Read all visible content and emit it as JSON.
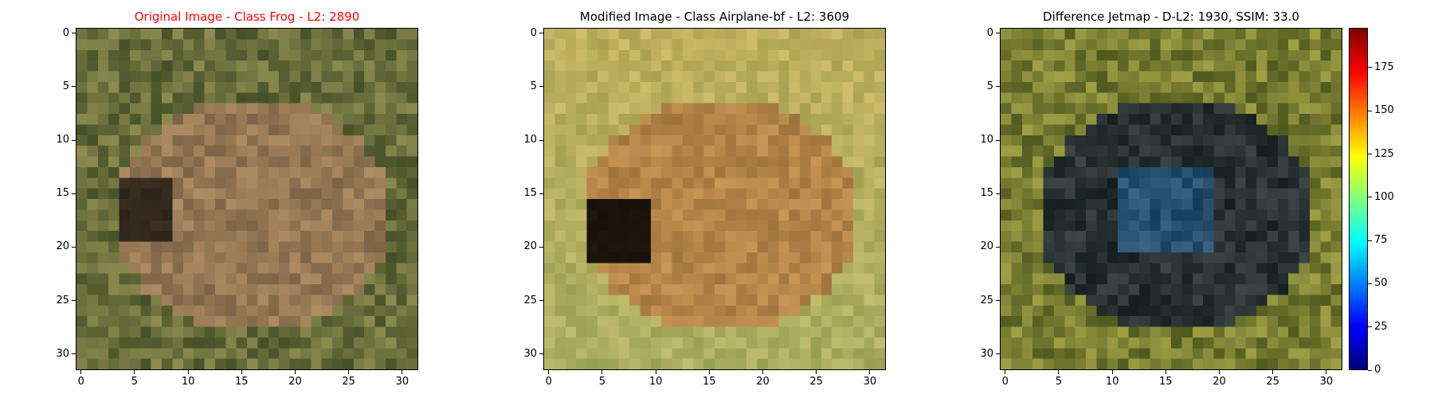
{
  "panels": [
    {
      "title": "Original Image - Class Frog - L2: 2890",
      "title_color": "#ff0000"
    },
    {
      "title": "Modified Image - Class Airplane-bf - L2: 3609",
      "title_color": "#000000"
    },
    {
      "title": "Difference Jetmap - D-L2: 1930, SSIM: 33.0",
      "title_color": "#000000"
    }
  ],
  "axis": {
    "x_ticks": [
      "0",
      "5",
      "10",
      "15",
      "20",
      "25",
      "30"
    ],
    "y_ticks": [
      "0",
      "5",
      "10",
      "15",
      "20",
      "25",
      "30"
    ],
    "grid_size": 32
  },
  "colorbar": {
    "ticks": [
      "0",
      "25",
      "50",
      "75",
      "100",
      "125",
      "150",
      "175"
    ],
    "min": 0,
    "max": 198,
    "colormap": "jet"
  }
}
